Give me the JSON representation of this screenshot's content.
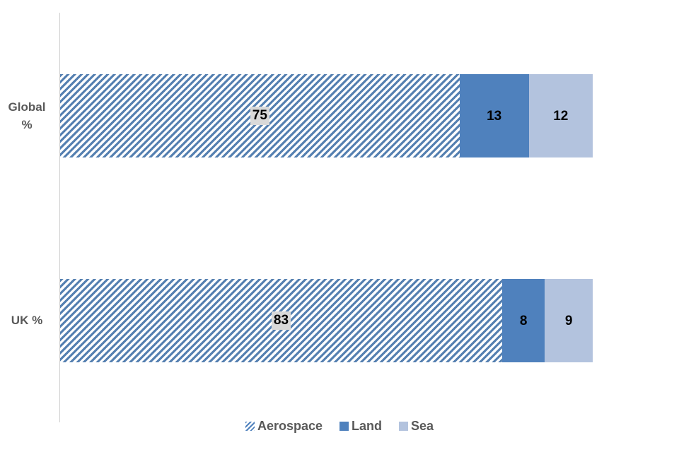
{
  "chart_data": {
    "type": "bar",
    "orientation": "horizontal",
    "stacked": true,
    "title": "",
    "xlabel": "",
    "ylabel": "",
    "grid": false,
    "xlim": [
      0,
      100
    ],
    "legend_position": "bottom",
    "data_labels": true,
    "categories": [
      "Global %",
      "UK %"
    ],
    "series": [
      {
        "name": "Aerospace",
        "values": [
          75,
          83
        ],
        "pattern": "diagonal-hatch",
        "color": "#5580b1"
      },
      {
        "name": "Land",
        "values": [
          13,
          8
        ],
        "pattern": "solid",
        "color": "#4f81bd"
      },
      {
        "name": "Sea",
        "values": [
          12,
          9
        ],
        "pattern": "solid",
        "color": "#b3c3de"
      }
    ]
  },
  "legend": {
    "items": [
      "Aerospace",
      "Land",
      "Sea"
    ]
  },
  "colors": {
    "aerospace_hatch": "#5580b1",
    "land": "#4f81bd",
    "sea": "#b3c3de",
    "category_text": "#595959",
    "data_label_text": "#000000",
    "data_label_chip_background": "#d9d9d9",
    "axis_line": "#cfcfcf",
    "background": "#ffffff"
  }
}
